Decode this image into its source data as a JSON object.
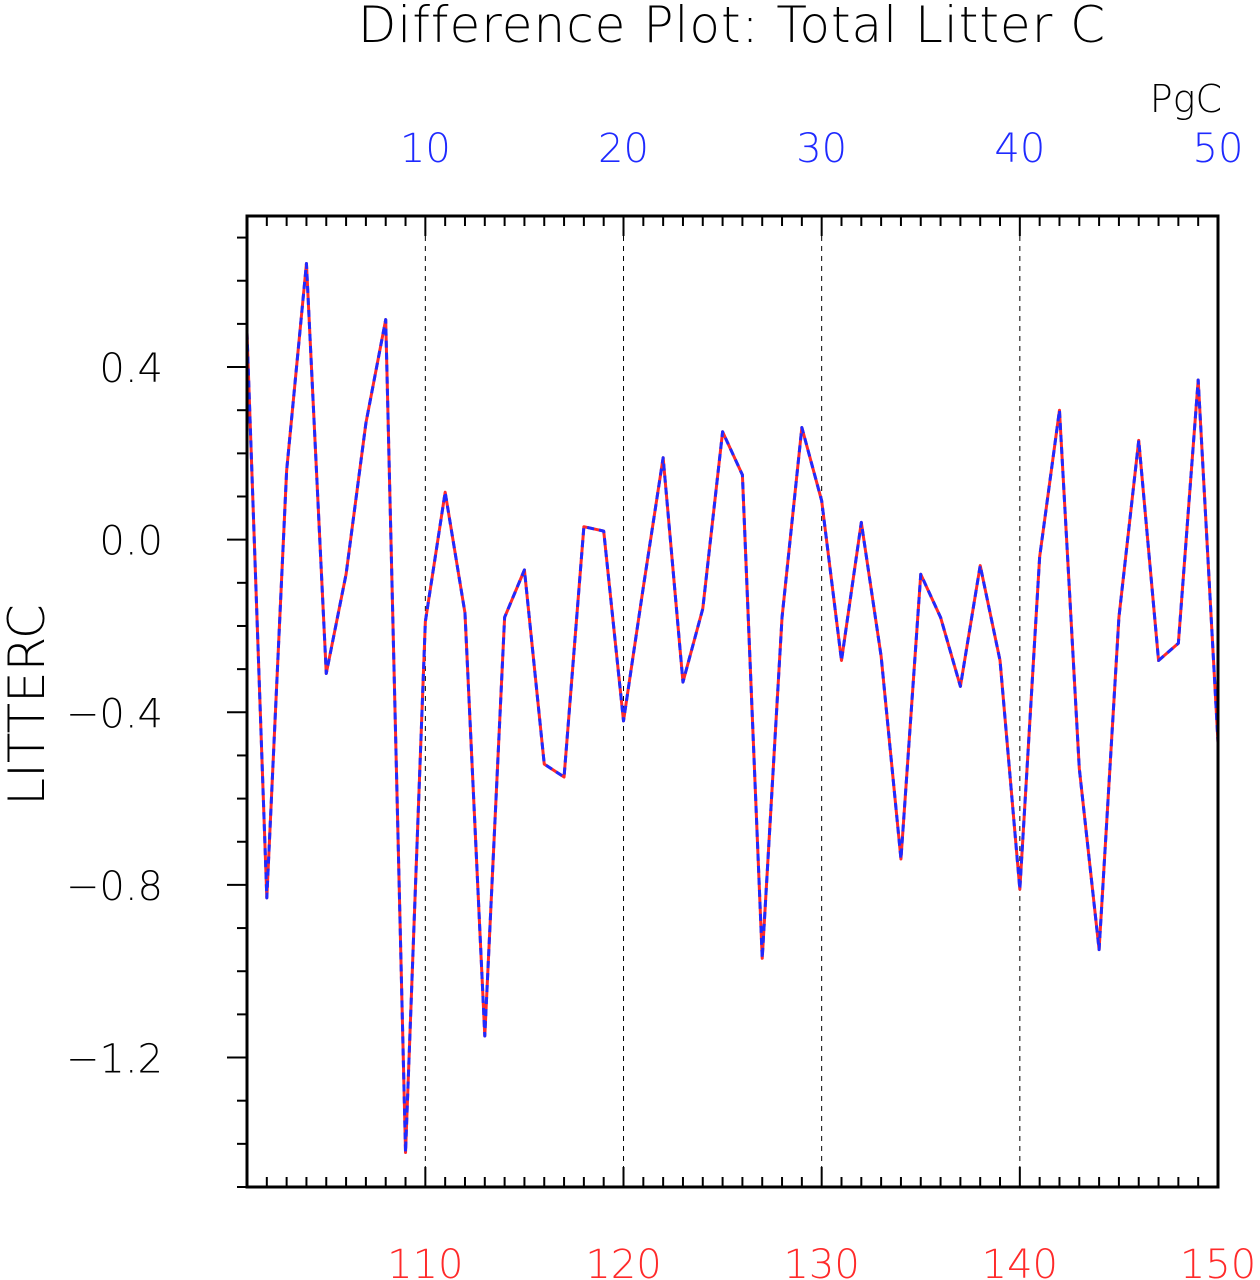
{
  "chart_data": {
    "type": "line",
    "title": "Difference Plot: Total Litter C",
    "ylabel": "LITTERC",
    "units": "PgC",
    "bottom_axis": {
      "color": "#ff2a2a",
      "range": [
        101,
        150
      ],
      "ticks": [
        "110",
        "120",
        "130",
        "140",
        "150"
      ],
      "tick_values": [
        110,
        120,
        130,
        140,
        150
      ]
    },
    "top_axis": {
      "color": "#1f2aff",
      "range": [
        1,
        50
      ],
      "ticks": [
        "10",
        "20",
        "30",
        "40",
        "50"
      ],
      "tick_values": [
        10,
        20,
        30,
        40,
        50
      ]
    },
    "ylim": [
      -1.5,
      0.75
    ],
    "y_ticks": [
      "0.4",
      "0.0",
      "−0.4",
      "−0.8",
      "−1.2"
    ],
    "y_tick_values": [
      0.4,
      0.0,
      -0.4,
      -0.8,
      -1.2
    ],
    "grid": "vertical dashed at major ticks",
    "series": [
      {
        "color": "#ff2a2a",
        "style": "solid",
        "x": [
          101,
          102,
          103,
          104,
          105,
          106,
          107,
          108,
          109,
          110,
          111,
          112,
          113,
          114,
          115,
          116,
          117,
          118,
          119,
          120,
          121,
          122,
          123,
          124,
          125,
          126,
          127,
          128,
          129,
          130,
          131,
          132,
          133,
          134,
          135,
          136,
          137,
          138,
          139,
          140,
          141,
          142,
          143,
          144,
          145,
          146,
          147,
          148,
          149,
          150
        ],
        "values": [
          0.48,
          -0.83,
          0.16,
          0.64,
          -0.31,
          -0.08,
          0.27,
          0.51,
          -1.42,
          -0.19,
          0.11,
          -0.17,
          -1.15,
          -0.18,
          -0.07,
          -0.52,
          -0.55,
          0.03,
          0.02,
          -0.42,
          -0.11,
          0.19,
          -0.33,
          -0.16,
          0.25,
          0.15,
          -0.97,
          -0.18,
          0.26,
          0.09,
          -0.28,
          0.04,
          -0.27,
          -0.74,
          -0.08,
          -0.18,
          -0.34,
          -0.06,
          -0.28,
          -0.81,
          -0.04,
          0.3,
          -0.53,
          -0.95,
          -0.18,
          0.23,
          -0.28,
          -0.24,
          0.37,
          -0.47
        ]
      },
      {
        "color": "#1f2aff",
        "style": "dashed",
        "x": [
          1,
          2,
          3,
          4,
          5,
          6,
          7,
          8,
          9,
          10,
          11,
          12,
          13,
          14,
          15,
          16,
          17,
          18,
          19,
          20,
          21,
          22,
          23,
          24,
          25,
          26,
          27,
          28,
          29,
          30,
          31,
          32,
          33,
          34,
          35,
          36,
          37,
          38,
          39,
          40,
          41,
          42,
          43,
          44,
          45,
          46,
          47,
          48,
          49,
          50
        ],
        "values": [
          0.48,
          -0.83,
          0.16,
          0.64,
          -0.31,
          -0.08,
          0.27,
          0.51,
          -1.42,
          -0.19,
          0.11,
          -0.17,
          -1.15,
          -0.18,
          -0.07,
          -0.52,
          -0.55,
          0.03,
          0.02,
          -0.42,
          -0.11,
          0.19,
          -0.33,
          -0.16,
          0.25,
          0.15,
          -0.97,
          -0.18,
          0.26,
          0.09,
          -0.28,
          0.04,
          -0.27,
          -0.74,
          -0.08,
          -0.18,
          -0.34,
          -0.06,
          -0.28,
          -0.81,
          -0.04,
          0.3,
          -0.53,
          -0.95,
          -0.18,
          0.23,
          -0.28,
          -0.24,
          0.37,
          -0.47
        ]
      }
    ]
  }
}
